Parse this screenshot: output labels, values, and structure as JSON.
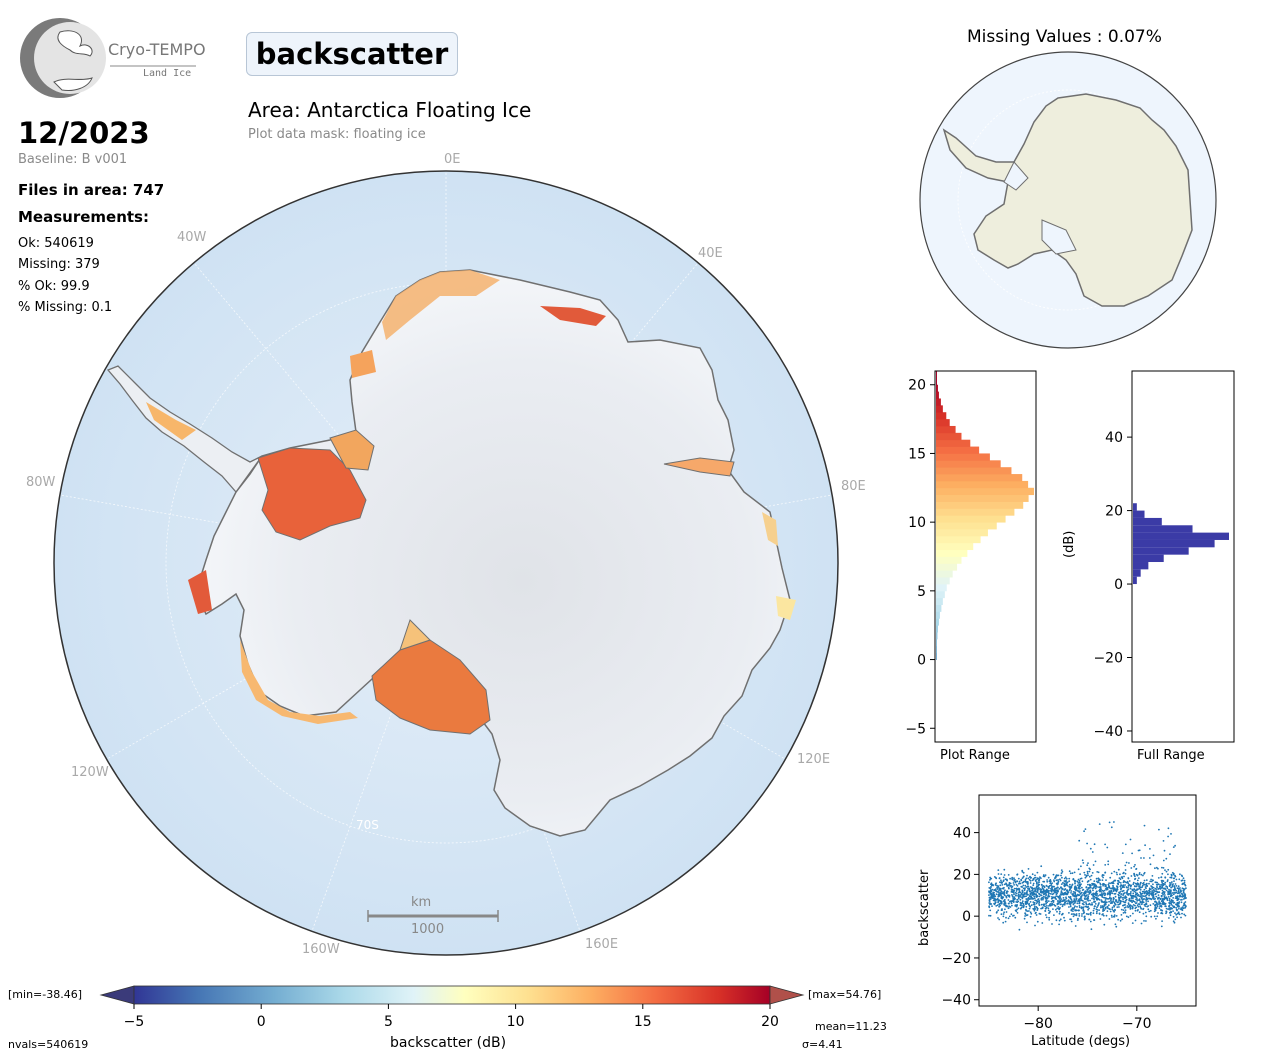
{
  "header": {
    "logo_name": "Cryo-TEMPO",
    "logo_sub": "Land Ice",
    "parameter": "backscatter",
    "area_title": "Area: Antarctica Floating Ice",
    "mask_text": "Plot data mask: floating ice",
    "date": "12/2023",
    "baseline": "Baseline: B v001",
    "files": "Files in area: 747",
    "measurements_label": "Measurements:",
    "ok": "Ok: 540619",
    "missing": "Missing: 379",
    "pct_ok": "% Ok: 99.9",
    "pct_missing": "% Missing: 0.1"
  },
  "map": {
    "lon_labels": {
      "0E": "0E",
      "40E": "40E",
      "80E": "80E",
      "120E": "120E",
      "160E": "160E",
      "160W": "160W",
      "120W": "120W",
      "80W": "80W",
      "40W": "40W"
    },
    "lat_label": "70S",
    "scalebar_unit": "km",
    "scalebar_value": "1000",
    "colors": {
      "ocean": "#d6e7f5",
      "land": "#e6e9ee",
      "coast": "#707070"
    }
  },
  "inset": {
    "title": "Missing Values : 0.07%",
    "colors": {
      "ocean": "#eef5fd",
      "land": "#eeeedd"
    }
  },
  "colorbar": {
    "min_label": "[min=-38.46]",
    "max_label": "[max=54.76]",
    "ticks": [
      "−5",
      "0",
      "5",
      "10",
      "15",
      "20"
    ],
    "label": "backscatter (dB)",
    "nvals": "nvals=540619",
    "mean": "mean=11.23",
    "sigma": "σ=4.41",
    "range": [
      -5,
      20
    ],
    "colormap": "RdYlBu_r"
  },
  "chart_data": [
    {
      "type": "histogram",
      "xlabel": "Plot Range",
      "ylim": [
        -6,
        21
      ],
      "ticks": [
        "−5",
        "0",
        "5",
        "10",
        "15",
        "20"
      ],
      "bins": [
        {
          "y": 0,
          "v": 1
        },
        {
          "y": 1,
          "v": 1
        },
        {
          "y": 2,
          "v": 2
        },
        {
          "y": 3,
          "v": 4
        },
        {
          "y": 4,
          "v": 7
        },
        {
          "y": 5,
          "v": 11
        },
        {
          "y": 6,
          "v": 17
        },
        {
          "y": 7,
          "v": 26
        },
        {
          "y": 8,
          "v": 38
        },
        {
          "y": 9,
          "v": 53
        },
        {
          "y": 10,
          "v": 71
        },
        {
          "y": 11,
          "v": 89
        },
        {
          "y": 12,
          "v": 100
        },
        {
          "y": 13,
          "v": 88
        },
        {
          "y": 14,
          "v": 66
        },
        {
          "y": 15,
          "v": 44
        },
        {
          "y": 16,
          "v": 26
        },
        {
          "y": 17,
          "v": 14
        },
        {
          "y": 18,
          "v": 7
        },
        {
          "y": 19,
          "v": 3
        },
        {
          "y": 20,
          "v": 1
        }
      ]
    },
    {
      "type": "histogram",
      "xlabel": "Full Range",
      "ylabel": "(dB)",
      "ylim": [
        -43,
        58
      ],
      "ticks": [
        "−40",
        "−20",
        "0",
        "20",
        "40"
      ],
      "color": "#3b3ba6",
      "bins": [
        {
          "y": 0,
          "v": 4
        },
        {
          "y": 2,
          "v": 8
        },
        {
          "y": 4,
          "v": 16
        },
        {
          "y": 6,
          "v": 32
        },
        {
          "y": 8,
          "v": 58
        },
        {
          "y": 10,
          "v": 85
        },
        {
          "y": 12,
          "v": 100
        },
        {
          "y": 14,
          "v": 62
        },
        {
          "y": 16,
          "v": 30
        },
        {
          "y": 18,
          "v": 12
        },
        {
          "y": 20,
          "v": 4
        }
      ]
    },
    {
      "type": "scatter",
      "xlabel": "Latitude (degs)",
      "ylabel": "backscatter",
      "xlim": [
        -86,
        -64
      ],
      "ylim": [
        -43,
        58
      ],
      "xticks": [
        "−80",
        "−70"
      ],
      "yticks": [
        "−40",
        "−20",
        "0",
        "20",
        "40"
      ],
      "color": "#1f77b4",
      "lat_range": [
        -85,
        -65
      ],
      "center": 10,
      "spread": 10
    }
  ]
}
